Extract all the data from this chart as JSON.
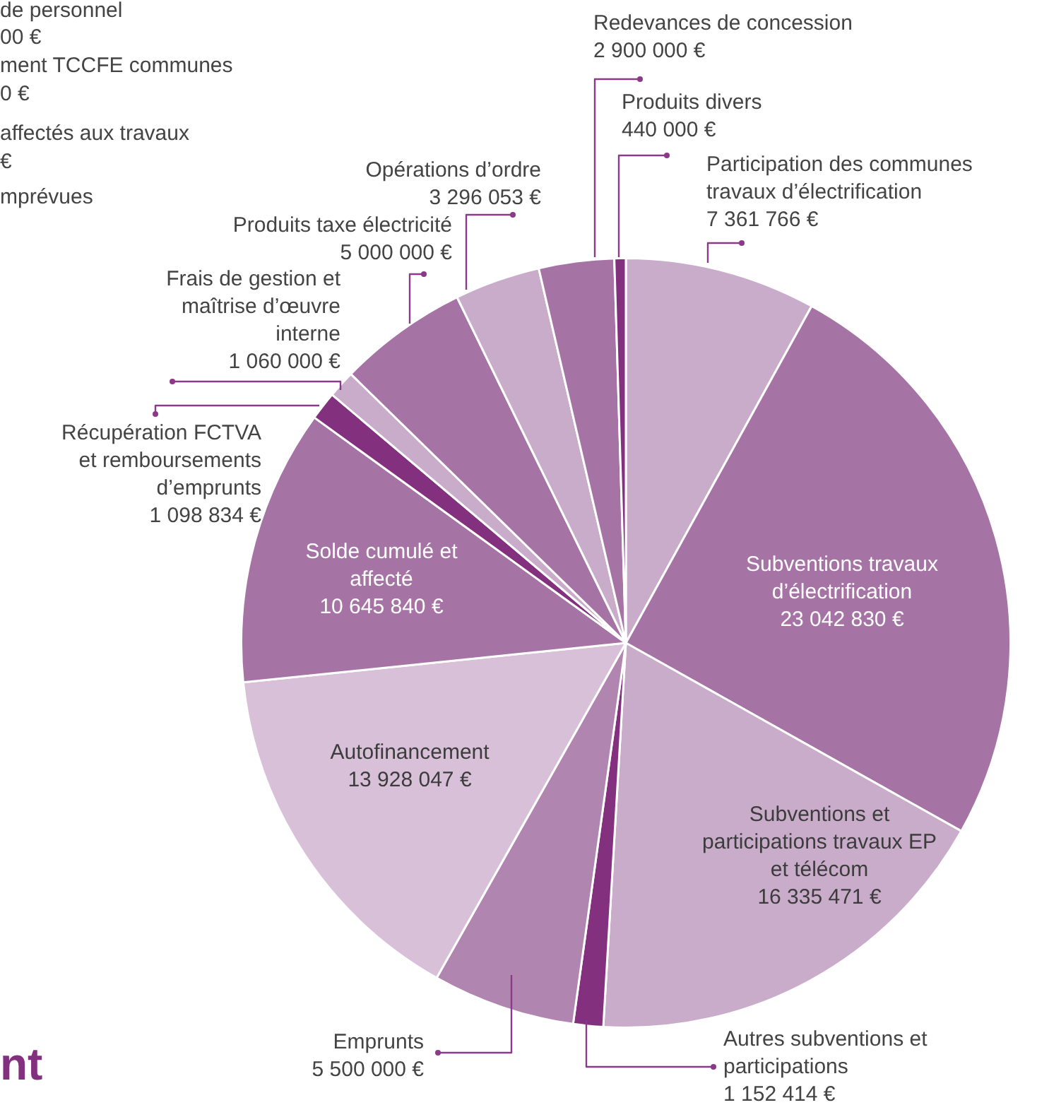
{
  "chart_data": {
    "type": "pie",
    "categories": [
      "Participation des communes travaux d’électrification",
      "Subventions travaux d’électrification",
      "Subventions et participations travaux EP et télécom",
      "Autres subventions et participations",
      "Emprunts",
      "Autofinancement",
      "Solde cumulé et affecté",
      "Récupération FCTVA et remboursements d’emprunts",
      "Frais de gestion et maîtrise d’œuvre interne",
      "Produits taxe électricité",
      "Opérations d’ordre",
      "Redevances de concession",
      "Produits divers"
    ],
    "values": [
      7361766,
      23042830,
      16335471,
      1152414,
      5500000,
      13928047,
      10645840,
      1098834,
      1060000,
      5000000,
      3296053,
      2900000,
      440000
    ],
    "value_labels": [
      "7 361 766 €",
      "23 042 830 €",
      "16 335 471 €",
      "1 152 414 €",
      "5 500 000 €",
      "13 928 047 €",
      "10 645 840 €",
      "1 098 834 €",
      "1 060 000 €",
      "5 000 000 €",
      "3 296 053 €",
      "2 900 000 €",
      "440 000 €"
    ],
    "colors": [
      "#c9abca",
      "#a673a5",
      "#c9abca",
      "#83307f",
      "#b086b0",
      "#d8c1d8",
      "#a673a5",
      "#83307f",
      "#c9abca",
      "#a673a5",
      "#c9abca",
      "#a673a5",
      "#83307f"
    ],
    "annotations": [
      "de personnel",
      "00 €",
      "ment TCCFE communes",
      "0 €",
      "affectés aux travaux",
      "€",
      "mprévues",
      "nt"
    ]
  }
}
